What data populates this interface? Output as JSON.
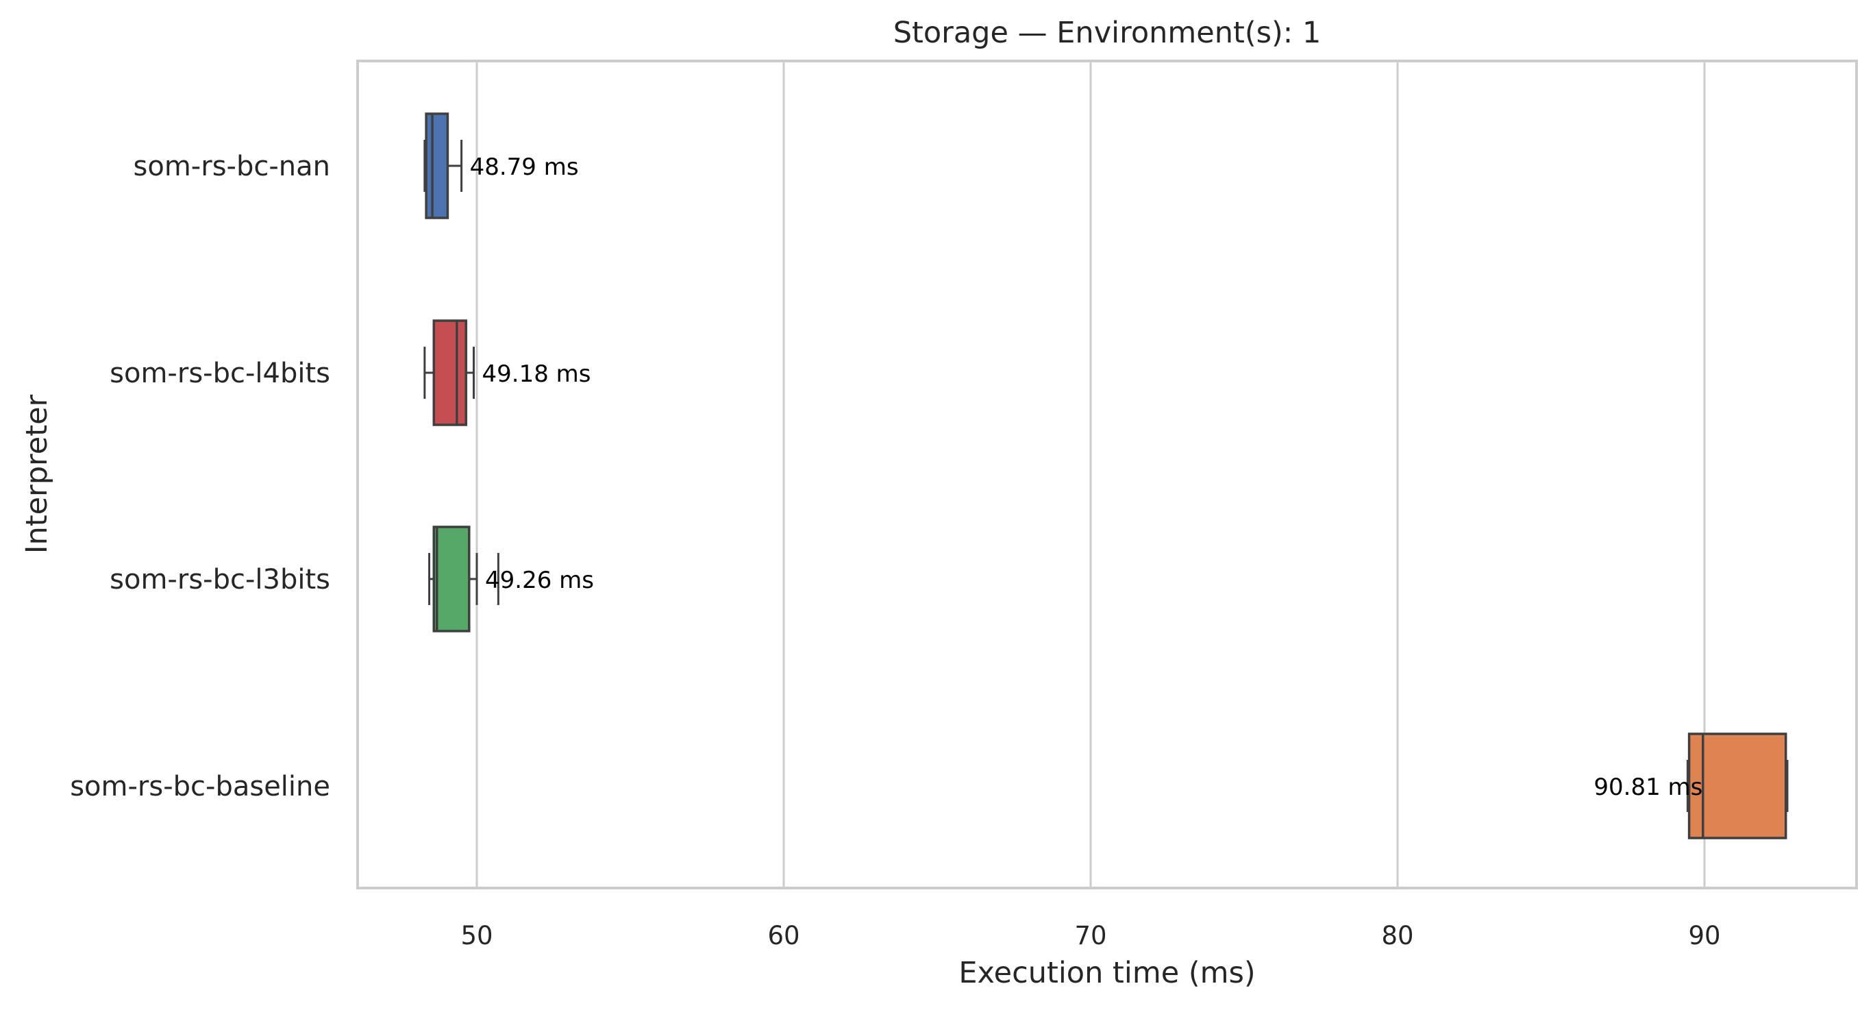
{
  "chart_data": {
    "type": "box",
    "orientation": "horizontal",
    "title": "Storage — Environment(s): 1",
    "xlabel": "Execution time (ms)",
    "ylabel": "Interpreter",
    "xlim": [
      46.1,
      95.0
    ],
    "xticks": [
      50,
      60,
      70,
      80,
      90
    ],
    "grid": "vertical",
    "legend": "none",
    "categories": [
      "som-rs-bc-nan",
      "som-rs-bc-l4bits",
      "som-rs-bc-l3bits",
      "som-rs-bc-baseline"
    ],
    "series": [
      {
        "category": "som-rs-bc-nan",
        "color": "#4c72b0",
        "whisker_low": 48.3,
        "q1": 48.35,
        "median": 48.55,
        "q3": 49.05,
        "whisker_high": 49.5,
        "outliers": [],
        "annotation": "48.79 ms",
        "annotation_side": "right"
      },
      {
        "category": "som-rs-bc-l4bits",
        "color": "#c44e52",
        "whisker_low": 48.3,
        "q1": 48.6,
        "median": 49.35,
        "q3": 49.65,
        "whisker_high": 49.9,
        "outliers": [],
        "annotation": "49.18 ms",
        "annotation_side": "right"
      },
      {
        "category": "som-rs-bc-l3bits",
        "color": "#55a868",
        "whisker_low": 48.45,
        "q1": 48.6,
        "median": 48.7,
        "q3": 49.75,
        "whisker_high": 50.0,
        "outliers": [
          50.7
        ],
        "annotation": "49.26 ms",
        "annotation_side": "right"
      },
      {
        "category": "som-rs-bc-baseline",
        "color": "#dd8452",
        "whisker_low": 89.45,
        "q1": 89.5,
        "median": 89.95,
        "q3": 92.65,
        "whisker_high": 92.7,
        "outliers": [],
        "annotation": "90.81 ms",
        "annotation_side": "left"
      }
    ]
  }
}
